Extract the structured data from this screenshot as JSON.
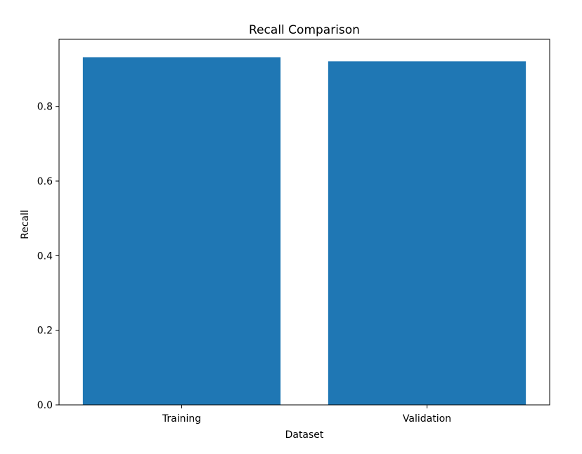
{
  "chart_data": {
    "type": "bar",
    "title": "Recall Comparison",
    "xlabel": "Dataset",
    "ylabel": "Recall",
    "categories": [
      "Training",
      "Validation"
    ],
    "values": [
      0.932,
      0.921
    ],
    "ylim": [
      0,
      0.98
    ],
    "yticks": [
      0.0,
      0.2,
      0.4,
      0.6,
      0.8
    ],
    "ytick_labels": [
      "0.0",
      "0.2",
      "0.4",
      "0.6",
      "0.8"
    ],
    "bar_color": "#1f77b4",
    "grid": false
  }
}
